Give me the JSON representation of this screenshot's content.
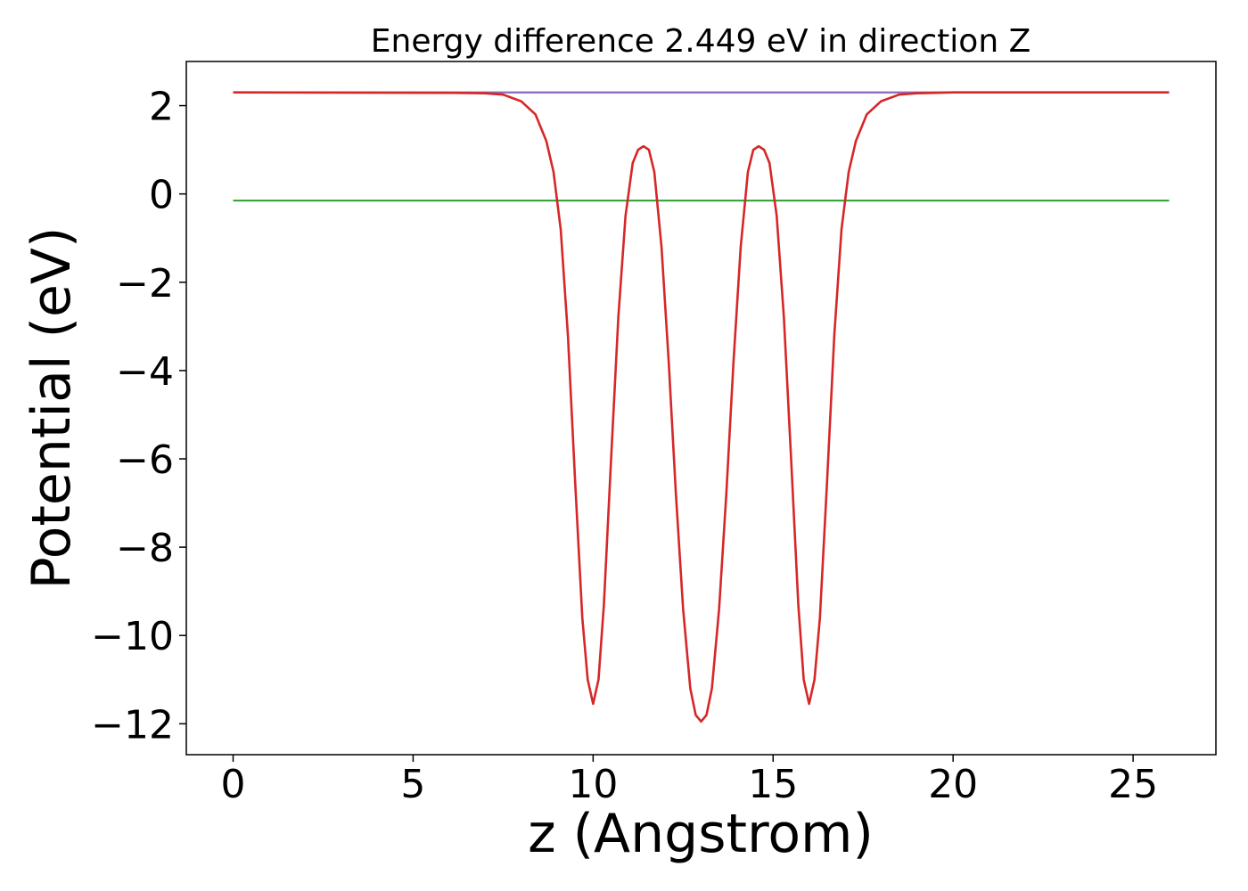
{
  "chart_data": {
    "type": "line",
    "title": "Energy difference 2.449 eV in direction Z",
    "xlabel": "z (Angstrom)",
    "ylabel": "Potential (eV)",
    "xlim": [
      -1.3,
      27.3
    ],
    "ylim": [
      -12.7,
      3.0
    ],
    "xticks": [
      0,
      5,
      10,
      15,
      20,
      25
    ],
    "yticks": [
      2,
      0,
      -2,
      -4,
      -6,
      -8,
      -10,
      -12
    ],
    "grid": false,
    "legend": "none",
    "series": [
      {
        "color": "#1f77b4",
        "x": [
          0,
          26
        ],
        "y": [
          2.3,
          2.3
        ]
      },
      {
        "color": "#2ca02c",
        "x": [
          0,
          26
        ],
        "y": [
          -0.15,
          -0.15
        ]
      },
      {
        "color": "#9467bd",
        "x": [
          0,
          7.5,
          18.8,
          26
        ],
        "y": [
          2.3,
          2.3,
          2.3,
          2.3
        ]
      },
      {
        "color": "#d62728",
        "x": [
          0,
          6.0,
          7.0,
          7.5,
          8.0,
          8.4,
          8.7,
          8.9,
          9.1,
          9.3,
          9.5,
          9.7,
          9.85,
          10.0,
          10.15,
          10.3,
          10.5,
          10.7,
          10.9,
          11.1,
          11.25,
          11.4,
          11.55,
          11.7,
          11.9,
          12.1,
          12.3,
          12.5,
          12.7,
          12.85,
          13.0,
          13.15,
          13.3,
          13.5,
          13.7,
          13.9,
          14.1,
          14.3,
          14.45,
          14.6,
          14.75,
          14.9,
          15.1,
          15.3,
          15.5,
          15.7,
          15.85,
          16.0,
          16.15,
          16.3,
          16.5,
          16.7,
          16.9,
          17.1,
          17.3,
          17.6,
          18.0,
          18.5,
          19.0,
          20.0,
          26.0
        ],
        "y": [
          2.3,
          2.29,
          2.28,
          2.25,
          2.1,
          1.8,
          1.2,
          0.5,
          -0.8,
          -3.2,
          -6.5,
          -9.6,
          -11.0,
          -11.55,
          -11.0,
          -9.3,
          -6.0,
          -2.8,
          -0.5,
          0.7,
          1.0,
          1.08,
          1.0,
          0.5,
          -1.2,
          -3.8,
          -6.8,
          -9.4,
          -11.2,
          -11.8,
          -11.95,
          -11.8,
          -11.2,
          -9.4,
          -6.8,
          -3.8,
          -1.2,
          0.5,
          1.0,
          1.08,
          1.0,
          0.7,
          -0.5,
          -2.8,
          -6.0,
          -9.3,
          -11.0,
          -11.55,
          -11.0,
          -9.6,
          -6.5,
          -3.2,
          -0.8,
          0.5,
          1.2,
          1.8,
          2.1,
          2.25,
          2.28,
          2.3,
          2.3
        ]
      }
    ]
  }
}
